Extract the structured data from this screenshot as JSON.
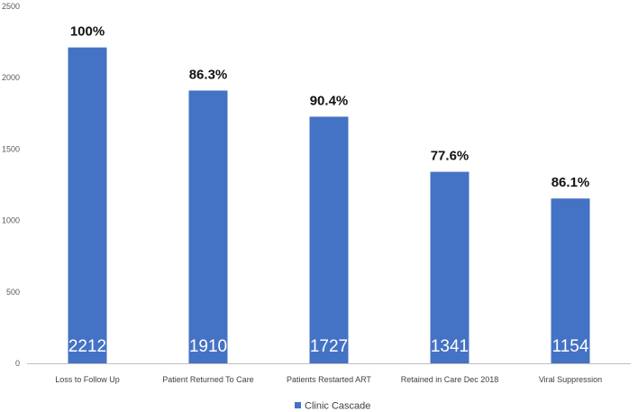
{
  "chart_data": {
    "type": "bar",
    "categories": [
      "Loss to Follow Up",
      "Patient Returned To Care",
      "Patients Restarted ART",
      "Retained in Care Dec 2018",
      "Viral Suppression"
    ],
    "series": [
      {
        "name": "Clinic Cascade",
        "values": [
          2212,
          1910,
          1727,
          1341,
          1154
        ],
        "value_labels": [
          "2212",
          "1910",
          "1727",
          "1341",
          "1154"
        ],
        "percent_labels": [
          "100%",
          "86.3%",
          "90.4%",
          "77.6%",
          "86.1%"
        ]
      }
    ],
    "ylim": [
      0,
      2500
    ],
    "yticks": [
      0,
      500,
      1000,
      1500,
      2000,
      2500
    ],
    "grid": false,
    "legend_position": "bottom",
    "colors": {
      "bar": "#4472C4",
      "axis": "#bfbfbf"
    }
  }
}
